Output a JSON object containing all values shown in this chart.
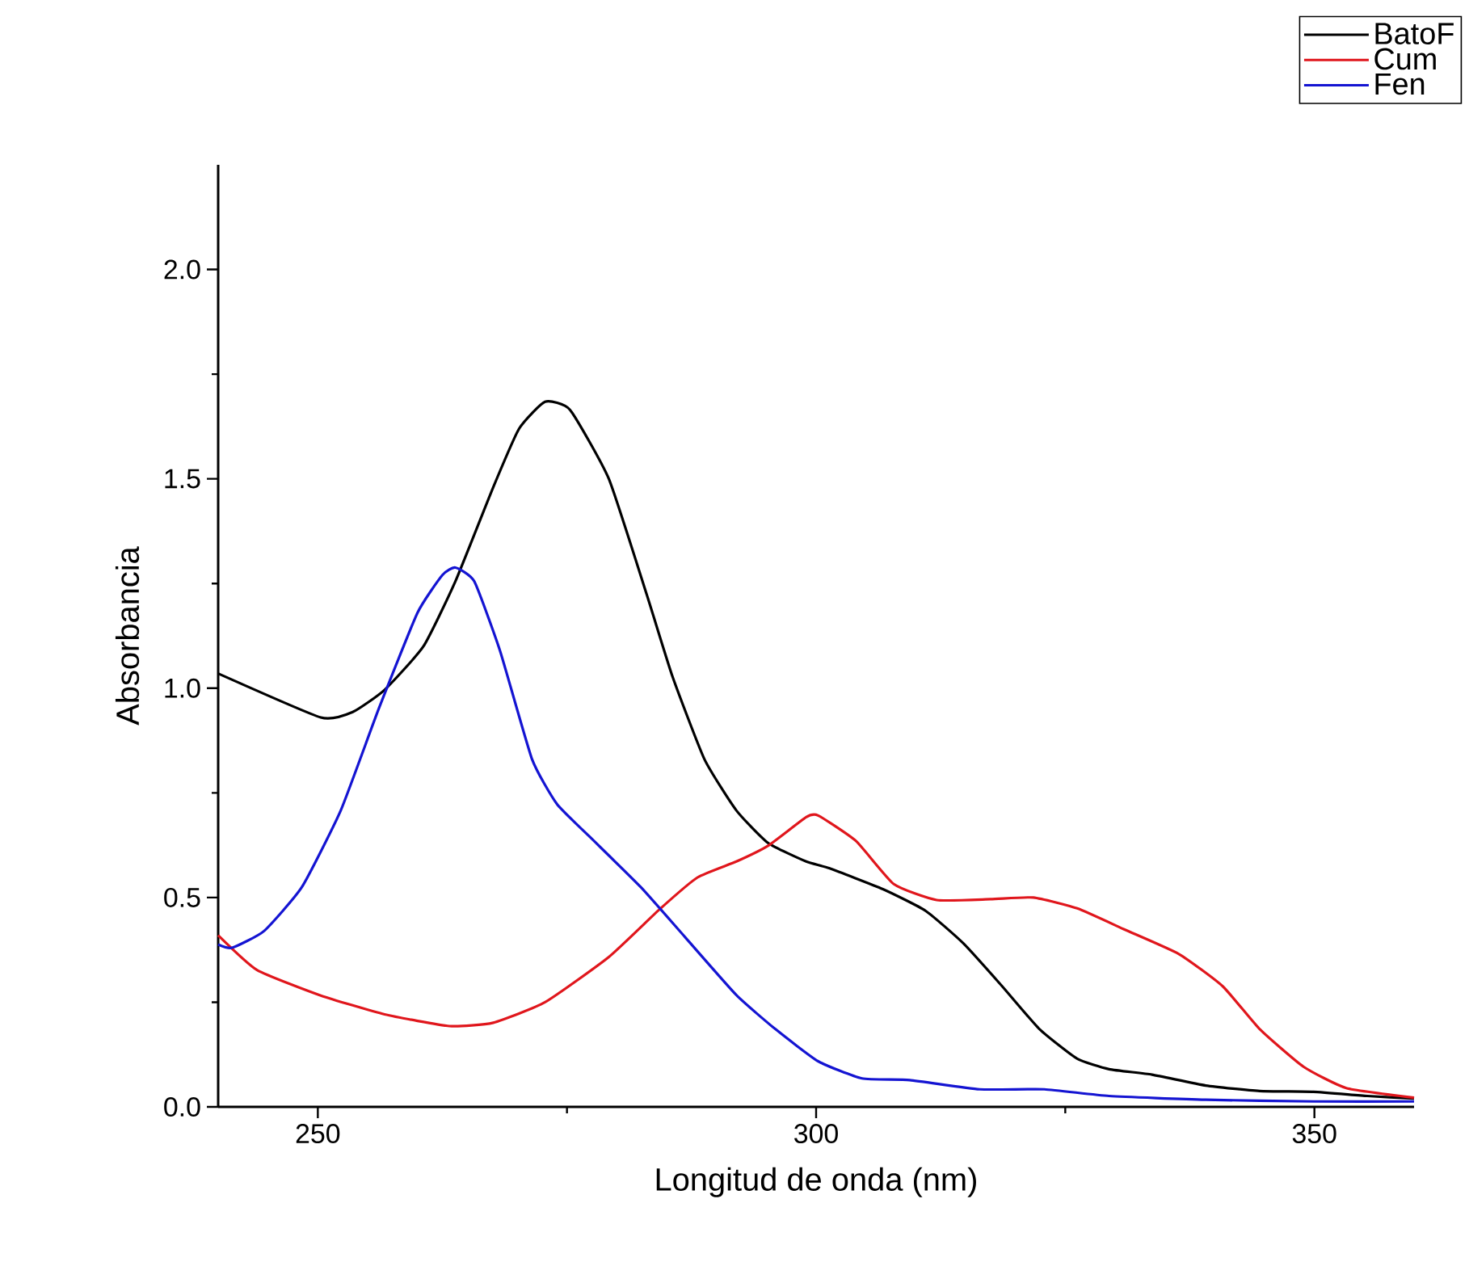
{
  "chart_data": {
    "type": "line",
    "xlabel": "Longitud de onda (nm)",
    "ylabel": "Absorbancia",
    "xlim": [
      240,
      360
    ],
    "ylim": [
      0,
      2.25
    ],
    "xticks": [
      250,
      300,
      350
    ],
    "yticks": [
      {
        "value": 0,
        "label": "0.0"
      },
      {
        "value": 0.5,
        "label": "0.5"
      },
      {
        "value": 1.0,
        "label": "1.0"
      },
      {
        "value": 1.5,
        "label": "1.5"
      },
      {
        "value": 2.0,
        "label": "2.0"
      }
    ],
    "legend": "top right",
    "grid": false,
    "marker": "none",
    "line_style": "solid",
    "series": [
      {
        "name": "BatoF",
        "color": "#000000",
        "x": [
          240,
          250.3,
          253.5,
          256.7,
          260.6,
          263.8,
          267.6,
          270.2,
          272.8,
          275.3,
          279.2,
          283,
          285.6,
          288.8,
          292,
          295.2,
          299,
          301.3,
          306.7,
          311,
          314.8,
          318.6,
          322.4,
          326.2,
          329.4,
          333.7,
          339.1,
          344.5,
          349.9,
          355.3,
          360
        ],
        "values": [
          1.035,
          0.93,
          0.943,
          0.996,
          1.1,
          1.255,
          1.48,
          1.62,
          1.684,
          1.665,
          1.5,
          1.224,
          1.027,
          0.83,
          0.708,
          0.63,
          0.586,
          0.57,
          0.52,
          0.468,
          0.39,
          0.29,
          0.186,
          0.115,
          0.09,
          0.077,
          0.051,
          0.038,
          0.036,
          0.026,
          0.02
        ]
      },
      {
        "name": "Cum",
        "color": "#e0161c",
        "x": [
          240,
          243.9,
          250.3,
          256.7,
          263.2,
          267.6,
          272.8,
          279.2,
          284.3,
          288.1,
          292,
          295.2,
          299,
          300.2,
          304,
          307.8,
          312.1,
          317.5,
          321.8,
          326.2,
          331,
          336.4,
          340.8,
          344.5,
          348.9,
          353.2,
          360
        ],
        "values": [
          0.41,
          0.327,
          0.266,
          0.221,
          0.193,
          0.201,
          0.25,
          0.358,
          0.472,
          0.548,
          0.586,
          0.624,
          0.692,
          0.696,
          0.635,
          0.532,
          0.494,
          0.496,
          0.5,
          0.474,
          0.423,
          0.365,
          0.288,
          0.186,
          0.096,
          0.045,
          0.022
        ]
      },
      {
        "name": "Fen",
        "color": "#1414d2",
        "x": [
          240,
          241.4,
          244.6,
          248.4,
          252.3,
          256.1,
          260,
          262.5,
          263.8,
          265.7,
          268.3,
          271.5,
          274,
          277.2,
          282.4,
          286.9,
          292,
          295.9,
          300.2,
          304.6,
          309.4,
          316.4,
          322.9,
          329.4,
          339.1,
          349.9,
          360
        ],
        "values": [
          0.388,
          0.38,
          0.42,
          0.525,
          0.708,
          0.95,
          1.18,
          1.27,
          1.288,
          1.255,
          1.088,
          0.83,
          0.723,
          0.647,
          0.525,
          0.404,
          0.267,
          0.186,
          0.109,
          0.068,
          0.064,
          0.042,
          0.042,
          0.026,
          0.017,
          0.013,
          0.013
        ]
      }
    ]
  }
}
